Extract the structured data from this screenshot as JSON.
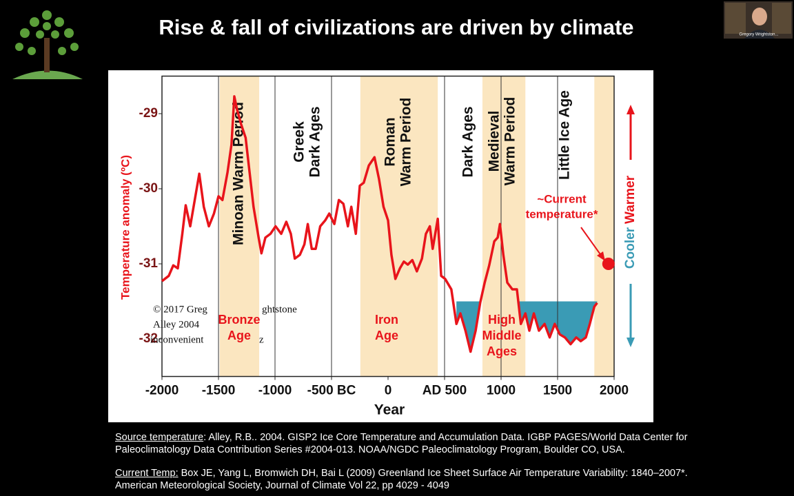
{
  "slide": {
    "title": "Rise & fall of civilizations are driven by climate",
    "webcam_name": "Gregory Wrightston...",
    "source_label": "Source temperature",
    "source_text": ": Alley, R.B.. 2004. GISP2 Ice Core Temperature and Accumulation Data. IGBP PAGES/World Data Center for Paleoclimatology Data Contribution Series #2004-013. NOAA/NGDC Paleoclimatology Program, Boulder CO, USA.",
    "current_label": "Current Temp:",
    "current_text": " Box JE, Yang L, Bromwich DH, Bai L (2009) Greenland Ice Sheet Surface Air Temperature Variability: 1840–2007*. American Meteorological Society, Journal of Climate Vol 22, pp 4029 - 4049",
    "overlay_text": [
      "© 2017 Greg",
      "ghtstone",
      "Alley 2004",
      "inconvenient",
      "z"
    ]
  },
  "chart_data": {
    "type": "line",
    "xlabel": "Year",
    "ylabel": "Temperature anomaly (ºC)",
    "xlim": [
      -2000,
      2000
    ],
    "ylim": [
      -32.5,
      -28.5
    ],
    "xticks": [
      -2000,
      -1500,
      -1000,
      {
        "value": -500,
        "label": "-500 BC"
      },
      0,
      {
        "value": 500,
        "label": "AD 500"
      },
      1000,
      1500,
      2000
    ],
    "xgrid": [
      -1500,
      -1000,
      -500,
      500,
      1000,
      1500
    ],
    "yticks": [
      -29,
      -30,
      -31,
      -32
    ],
    "bands": [
      [
        -1490,
        -1140
      ],
      [
        -245,
        440
      ],
      [
        835,
        1215
      ],
      [
        1825,
        2000
      ]
    ],
    "band_color": "#fbe6c0",
    "shade_threshold": -31.5,
    "shade_range": [
      590,
      1860
    ],
    "shade_color": "#3a9bb5",
    "periods": [
      [
        "Minoan  Warm Period"
      ],
      [
        "Greek",
        "Dark Ages"
      ],
      [
        "Roman",
        "Warm Period"
      ],
      [
        "Dark Ages"
      ],
      [
        "Medieval",
        "Warm Period"
      ],
      [
        "Little Ice Age"
      ]
    ],
    "eras": [
      [
        "Bronze",
        "Age"
      ],
      [
        "Iron",
        "Age"
      ],
      [
        "High",
        "Middle",
        "Ages"
      ]
    ],
    "annotation": [
      "~Current",
      "temperature*"
    ],
    "right_labels": [
      "Cooler",
      "Warmer"
    ],
    "series": [
      {
        "name": "GISP2",
        "color": "#e8141b",
        "x": [
          -2000,
          -1940,
          -1900,
          -1860,
          -1820,
          -1790,
          -1750,
          -1710,
          -1670,
          -1630,
          -1585,
          -1540,
          -1500,
          -1465,
          -1420,
          -1385,
          -1360,
          -1335,
          -1300,
          -1260,
          -1225,
          -1190,
          -1145,
          -1120,
          -1085,
          -1040,
          -995,
          -945,
          -900,
          -860,
          -825,
          -780,
          -740,
          -710,
          -675,
          -640,
          -600,
          -555,
          -520,
          -475,
          -435,
          -395,
          -355,
          -325,
          -285,
          -250,
          -215,
          -170,
          -120,
          -80,
          -40,
          0,
          30,
          65,
          105,
          140,
          175,
          215,
          255,
          300,
          335,
          370,
          395,
          440,
          470,
          505,
          560,
          605,
          640,
          685,
          730,
          775,
          815,
          855,
          895,
          940,
          970,
          990,
          1020,
          1055,
          1100,
          1140,
          1175,
          1215,
          1250,
          1290,
          1335,
          1385,
          1430,
          1475,
          1520,
          1565,
          1615,
          1665,
          1705,
          1750,
          1785,
          1825,
          1850
        ],
        "values": [
          -31.23,
          -31.16,
          -31.02,
          -31.06,
          -30.6,
          -30.22,
          -30.5,
          -30.15,
          -29.8,
          -30.24,
          -30.5,
          -30.33,
          -30.1,
          -30.15,
          -29.78,
          -29.41,
          -28.77,
          -28.95,
          -29.14,
          -29.32,
          -29.78,
          -30.24,
          -30.65,
          -30.86,
          -30.65,
          -30.6,
          -30.5,
          -30.6,
          -30.44,
          -30.6,
          -30.93,
          -30.88,
          -30.74,
          -30.47,
          -30.8,
          -30.8,
          -30.5,
          -30.42,
          -30.33,
          -30.47,
          -30.15,
          -30.2,
          -30.5,
          -30.24,
          -30.6,
          -29.96,
          -29.92,
          -29.69,
          -29.58,
          -29.87,
          -30.24,
          -30.42,
          -30.88,
          -31.2,
          -31.06,
          -30.97,
          -31.01,
          -30.95,
          -31.1,
          -30.93,
          -30.6,
          -30.5,
          -30.8,
          -30.4,
          -31.16,
          -31.2,
          -31.34,
          -31.8,
          -31.66,
          -31.89,
          -32.17,
          -31.89,
          -31.52,
          -31.25,
          -31.02,
          -30.7,
          -30.65,
          -30.47,
          -30.88,
          -31.25,
          -31.34,
          -31.34,
          -31.8,
          -31.66,
          -31.89,
          -31.66,
          -31.89,
          -31.8,
          -31.98,
          -31.8,
          -31.94,
          -31.98,
          -32.07,
          -31.98,
          -32.03,
          -31.98,
          -31.8,
          -31.57,
          -31.52
        ]
      },
      {
        "name": "Current temperature",
        "color": "#e8141b",
        "x": [
          1950
        ],
        "values": [
          -31.0
        ]
      }
    ]
  }
}
